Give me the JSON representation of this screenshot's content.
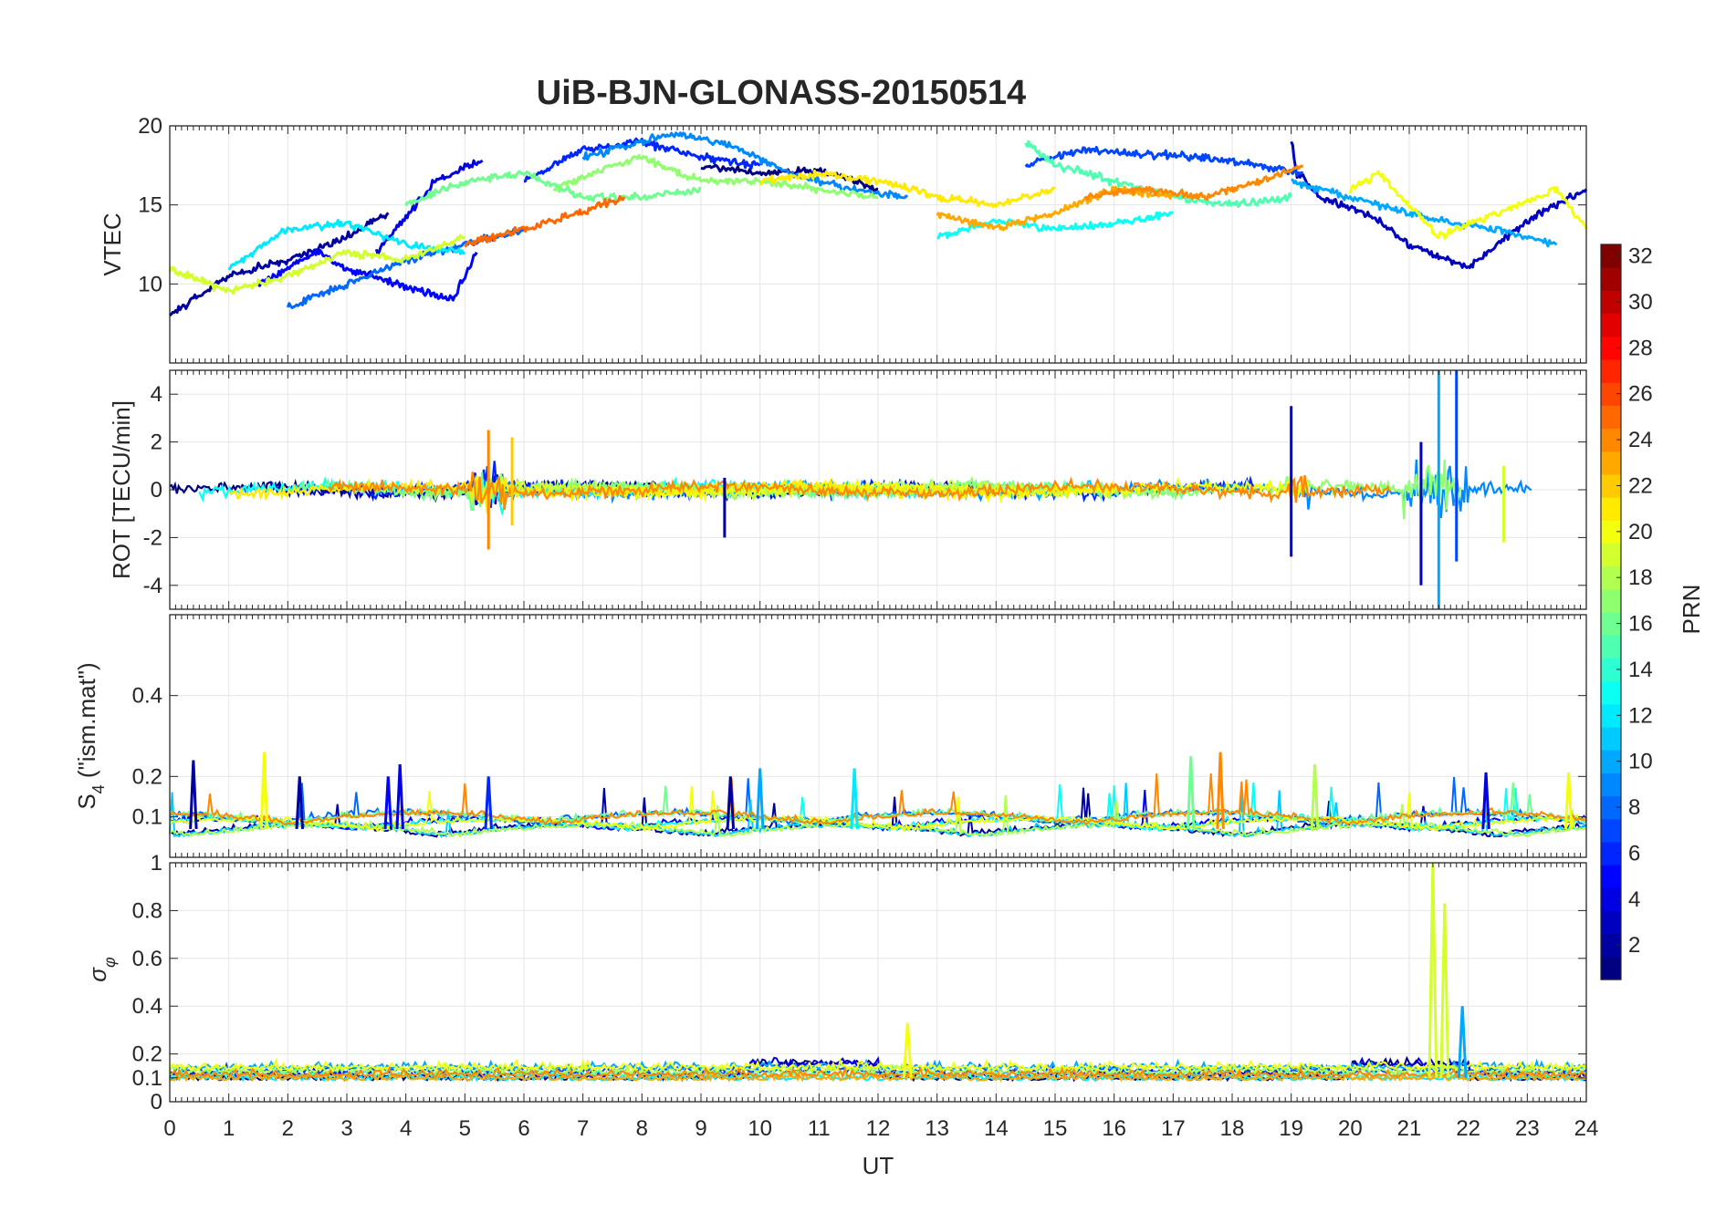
{
  "figure": {
    "title": "UiB-BJN-GLONASS-20150514",
    "xlabel": "UT"
  },
  "colorbar": {
    "label": "PRN",
    "range": [
      1,
      32
    ],
    "ticks": [
      2,
      4,
      6,
      8,
      10,
      12,
      14,
      16,
      18,
      20,
      22,
      24,
      26,
      28,
      30,
      32
    ],
    "colormap": "jet"
  },
  "chart_data": [
    {
      "type": "line",
      "panel": "vtec",
      "ylabel": "VTEC",
      "xlim": [
        0,
        24
      ],
      "ylim": [
        5,
        20
      ],
      "yticks": [
        10,
        15,
        20
      ],
      "xticks": [
        0,
        1,
        2,
        3,
        4,
        5,
        6,
        7,
        8,
        9,
        10,
        11,
        12,
        13,
        14,
        15,
        16,
        17,
        18,
        19,
        20,
        21,
        22,
        23,
        24
      ],
      "grid": true,
      "series": [
        {
          "prn": 1,
          "x": [
            9.0,
            10.0,
            11.0,
            12.0
          ],
          "y": [
            17.5,
            17.0,
            17.2,
            16.0
          ]
        },
        {
          "prn": 2,
          "x": [
            0,
            1,
            2,
            3,
            3.7
          ],
          "y": [
            8,
            10.5,
            11.5,
            13,
            14.5
          ]
        },
        {
          "prn": 3,
          "x": [
            19.0,
            19.1,
            19.5,
            20.5,
            21.0,
            22.0,
            23.0,
            24.0
          ],
          "y": [
            19.0,
            17.0,
            15.5,
            14.0,
            12.5,
            11.0,
            14.0,
            16.0
          ]
        },
        {
          "prn": 4,
          "x": [
            3.5,
            4.5,
            5.3
          ],
          "y": [
            12,
            16.5,
            17.8
          ]
        },
        {
          "prn": 5,
          "x": [
            1.5,
            2.5,
            3.0,
            4.0,
            4.8,
            5.2
          ],
          "y": [
            10,
            12,
            11,
            9.8,
            9,
            12
          ]
        },
        {
          "prn": 6,
          "x": [
            6.0,
            7.0,
            8.0,
            9.0,
            10.0
          ],
          "y": [
            16.5,
            18.5,
            19.0,
            18.0,
            17.5
          ]
        },
        {
          "prn": 7,
          "x": [
            14.5,
            15.5,
            16.5,
            17.5,
            18.5,
            19.2
          ],
          "y": [
            17.5,
            18.5,
            18.2,
            18.0,
            17.5,
            17.0
          ]
        },
        {
          "prn": 8,
          "x": [
            2.0,
            3.0,
            4.0,
            5.0,
            6.0
          ],
          "y": [
            8.5,
            10,
            11.5,
            12.5,
            13.5
          ]
        },
        {
          "prn": 9,
          "x": [
            7.0,
            8.0,
            8.5,
            9.5,
            10.5,
            11.5,
            12.5
          ],
          "y": [
            18.0,
            19.0,
            19.5,
            18.8,
            17.0,
            16.0,
            15.5
          ]
        },
        {
          "prn": 10,
          "x": [
            19.0,
            19.5,
            20.5,
            21.5,
            22.5,
            23.5
          ],
          "y": [
            16.5,
            16.0,
            15.0,
            14.0,
            13.5,
            12.5
          ]
        },
        {
          "prn": 12,
          "x": [
            1.0,
            2.0,
            3.0,
            4.0,
            5.0
          ],
          "y": [
            11,
            13.5,
            13.8,
            12.5,
            12
          ]
        },
        {
          "prn": 13,
          "x": [
            13.0,
            14.0,
            15.0,
            16.0,
            17.0
          ],
          "y": [
            13,
            14,
            13.5,
            13.8,
            14.5
          ]
        },
        {
          "prn": 15,
          "x": [
            14.5,
            15.0,
            16.0,
            17.0,
            18.0,
            19.0
          ],
          "y": [
            19,
            17.5,
            16.5,
            15.5,
            15,
            15.5
          ]
        },
        {
          "prn": 16,
          "x": [
            4.0,
            5.0,
            6.0,
            7.0,
            8.0,
            9.0
          ],
          "y": [
            15,
            16.5,
            17,
            15.5,
            15.5,
            16
          ]
        },
        {
          "prn": 17,
          "x": [
            6.5,
            7.5,
            8.0,
            9.0,
            10.0,
            11.0,
            12.0
          ],
          "y": [
            16,
            17.5,
            18,
            16.5,
            16.5,
            16,
            15.5
          ]
        },
        {
          "prn": 19,
          "x": [
            0,
            1,
            2,
            3,
            4,
            5
          ],
          "y": [
            11,
            9.5,
            10.5,
            12,
            11.5,
            13
          ]
        },
        {
          "prn": 20,
          "x": [
            20.0,
            20.5,
            21.0,
            21.5,
            22.5,
            23.5,
            24.0
          ],
          "y": [
            16,
            17,
            15,
            13,
            14.5,
            16,
            13.5
          ]
        },
        {
          "prn": 21,
          "x": [
            10.0,
            11.0,
            12.0,
            12.5,
            13.0,
            14.0,
            15.0
          ],
          "y": [
            16.5,
            17.0,
            16.5,
            16.0,
            15.5,
            15.0,
            16.0
          ]
        },
        {
          "prn": 23,
          "x": [
            13.0,
            14.0,
            15.0,
            16.0,
            17.0
          ],
          "y": [
            14.5,
            13.5,
            14.5,
            16.0,
            15.5
          ]
        },
        {
          "prn": 24,
          "x": [
            15.5,
            16.5,
            17.5,
            18.5,
            19.2
          ],
          "y": [
            15.5,
            16.0,
            15.5,
            16.5,
            17.5
          ]
        },
        {
          "prn": 25,
          "x": [
            5.0,
            6.0,
            7.0,
            7.7
          ],
          "y": [
            12.5,
            13.5,
            14.5,
            15.5
          ]
        }
      ]
    },
    {
      "type": "line",
      "panel": "rot",
      "ylabel": "ROT [TECU/min]",
      "xlim": [
        0,
        24
      ],
      "ylim": [
        -5,
        5
      ],
      "yticks": [
        -4,
        -2,
        0,
        2,
        4
      ],
      "grid": true,
      "spikes": [
        {
          "x": 5.4,
          "min": -2.5,
          "max": 2.5
        },
        {
          "x": 5.8,
          "min": -1.5,
          "max": 2.2
        },
        {
          "x": 9.4,
          "min": -2.0,
          "max": 0.5
        },
        {
          "x": 19.0,
          "min": -2.8,
          "max": 3.5
        },
        {
          "x": 21.2,
          "min": -4.0,
          "max": 2.0
        },
        {
          "x": 21.5,
          "min": -5.0,
          "max": 5.0
        },
        {
          "x": 21.8,
          "min": -3.0,
          "max": 5.0
        },
        {
          "x": 22.6,
          "min": -2.2,
          "max": 1.0
        }
      ]
    },
    {
      "type": "line",
      "panel": "s4",
      "ylabel_main": "S",
      "ylabel_sub": "4",
      "ylabel_rest": " (\"ism.mat\")",
      "xlim": [
        0,
        24
      ],
      "ylim": [
        0,
        0.6
      ],
      "yticks": [
        0.1,
        0.2,
        0.4
      ],
      "grid": true,
      "peaks": [
        {
          "x": 0.4,
          "y": 0.24
        },
        {
          "x": 1.6,
          "y": 0.26
        },
        {
          "x": 2.2,
          "y": 0.2
        },
        {
          "x": 3.7,
          "y": 0.2
        },
        {
          "x": 3.9,
          "y": 0.23
        },
        {
          "x": 5.4,
          "y": 0.2
        },
        {
          "x": 9.5,
          "y": 0.2
        },
        {
          "x": 10.0,
          "y": 0.22
        },
        {
          "x": 11.6,
          "y": 0.22
        },
        {
          "x": 17.3,
          "y": 0.25
        },
        {
          "x": 17.8,
          "y": 0.26
        },
        {
          "x": 19.4,
          "y": 0.23
        },
        {
          "x": 22.3,
          "y": 0.21
        },
        {
          "x": 23.7,
          "y": 0.21
        }
      ]
    },
    {
      "type": "line",
      "panel": "sigma_phi",
      "ylabel_main": "σ",
      "ylabel_sub": "φ",
      "xlim": [
        0,
        24
      ],
      "ylim": [
        0,
        1
      ],
      "yticks": [
        0,
        0.1,
        0.2,
        0.4,
        0.6,
        0.8,
        1
      ],
      "grid": true,
      "peaks": [
        {
          "x": 12.5,
          "y": 0.33
        },
        {
          "x": 21.4,
          "y": 1.0
        },
        {
          "x": 21.6,
          "y": 0.83
        },
        {
          "x": 21.9,
          "y": 0.4
        }
      ]
    }
  ]
}
